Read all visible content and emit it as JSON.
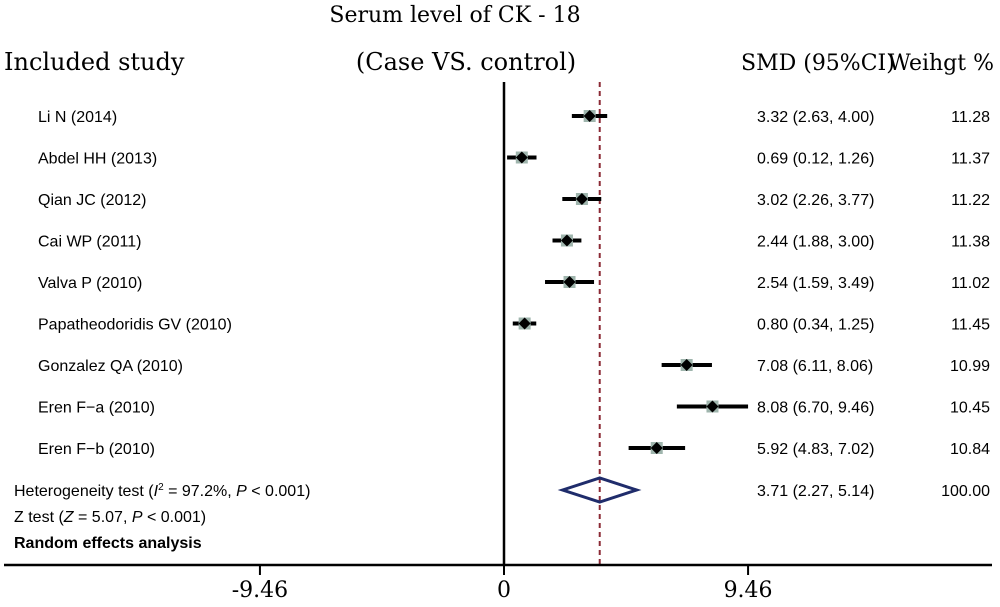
{
  "chart_data": {
    "type": "forest",
    "title": "Serum level of CK - 18",
    "header": {
      "study": "Included study",
      "comparison": "(Case VS. control)",
      "smd": "SMD (95%CI)",
      "weight": "Weihgt %"
    },
    "studies": [
      {
        "label": "Li N (2014)",
        "smd": 3.32,
        "lower": 2.63,
        "upper": 4.0,
        "ci_text": "3.32 (2.63, 4.00)",
        "weight": "11.28"
      },
      {
        "label": "Abdel HH (2013)",
        "smd": 0.69,
        "lower": 0.12,
        "upper": 1.26,
        "ci_text": "0.69 (0.12, 1.26)",
        "weight": "11.37"
      },
      {
        "label": "Qian JC (2012)",
        "smd": 3.02,
        "lower": 2.26,
        "upper": 3.77,
        "ci_text": "3.02 (2.26, 3.77)",
        "weight": "11.22"
      },
      {
        "label": "Cai WP (2011)",
        "smd": 2.44,
        "lower": 1.88,
        "upper": 3.0,
        "ci_text": "2.44 (1.88, 3.00)",
        "weight": "11.38"
      },
      {
        "label": "Valva P (2010)",
        "smd": 2.54,
        "lower": 1.59,
        "upper": 3.49,
        "ci_text": "2.54 (1.59, 3.49)",
        "weight": "11.02"
      },
      {
        "label": "Papatheodoridis GV (2010)",
        "smd": 0.8,
        "lower": 0.34,
        "upper": 1.25,
        "ci_text": "0.80 (0.34, 1.25)",
        "weight": "11.45"
      },
      {
        "label": "Gonzalez QA (2010)",
        "smd": 7.08,
        "lower": 6.11,
        "upper": 8.06,
        "ci_text": "7.08 (6.11, 8.06)",
        "weight": "10.99"
      },
      {
        "label": "Eren F−a (2010)",
        "smd": 8.08,
        "lower": 6.7,
        "upper": 9.46,
        "ci_text": "8.08 (6.70, 9.46)",
        "weight": "10.45"
      },
      {
        "label": "Eren F−b (2010)",
        "smd": 5.92,
        "lower": 4.83,
        "upper": 7.02,
        "ci_text": "5.92 (4.83, 7.02)",
        "weight": "10.84"
      }
    ],
    "overall": {
      "smd": 3.71,
      "lower": 2.27,
      "upper": 5.14,
      "ci_text": "3.71 (2.27, 5.14)",
      "weight": "100.00"
    },
    "footnotes": {
      "heterogeneity_prefix": "Heterogeneity test (",
      "heterogeneity_i2": "I",
      "heterogeneity_sup": "2",
      "heterogeneity_mid": " = 97.2%, ",
      "heterogeneity_p": "P",
      "heterogeneity_suffix": " < 0.001)",
      "ztest_prefix": "Z test (",
      "ztest_z": "Z",
      "ztest_mid": " = 5.07, ",
      "ztest_p": "P",
      "ztest_suffix": " < 0.001)",
      "analysis": "Random effects analysis"
    },
    "x_axis": {
      "ticks": [
        -9.46,
        0,
        9.46
      ],
      "tick_labels": [
        "-9.46",
        "0",
        "9.46"
      ],
      "range": [
        -20,
        19
      ]
    },
    "colors": {
      "ci_line": "#000000",
      "point": "#000000",
      "point_halo": "#9fb5ad",
      "overall_line": "#8b2a35",
      "diamond": "#1f2c6b"
    }
  }
}
